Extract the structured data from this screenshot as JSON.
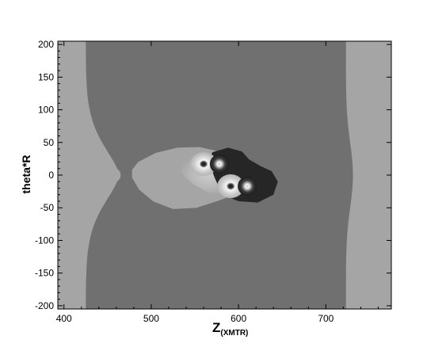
{
  "chart_data": {
    "type": "heatmap",
    "title": "",
    "xlabel": "Z",
    "xlabel_subscript": "(XMTR)",
    "ylabel": "theta*R",
    "xlim": [
      393,
      775
    ],
    "ylim": [
      -205,
      205
    ],
    "xticks": [
      400,
      500,
      600,
      700
    ],
    "yticks": [
      200,
      150,
      100,
      50,
      0,
      -50,
      -100,
      -150,
      -200
    ],
    "grid": false,
    "legend": "none",
    "colors": {
      "outer_band": "#a5a5a5",
      "background": "#707070",
      "lobe": "#a5a5a5",
      "dark_lobe": "#262626",
      "core_light": "#f2f2f2",
      "core_dark": "#151515",
      "axis": "#000000"
    },
    "regions": [
      {
        "name": "outer-band-left",
        "x_range": [
          393,
          425
        ],
        "y_range": [
          -205,
          205
        ]
      },
      {
        "name": "outer-band-right",
        "x_range": [
          723,
          775
        ],
        "y_range": [
          -205,
          205
        ]
      },
      {
        "name": "central-field",
        "x_range": [
          425,
          723
        ],
        "y_range": [
          -205,
          205
        ]
      }
    ],
    "vortices": [
      {
        "x": 560,
        "y": 17,
        "sign": "positive"
      },
      {
        "x": 591,
        "y": -17,
        "sign": "positive"
      },
      {
        "x": 578,
        "y": 17,
        "sign": "negative"
      },
      {
        "x": 610,
        "y": -17,
        "sign": "negative"
      }
    ]
  }
}
